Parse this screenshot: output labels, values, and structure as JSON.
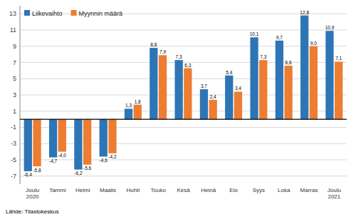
{
  "chart_data": {
    "type": "bar",
    "categories": [
      "Joulu\n2020",
      "Tammi",
      "Helmi",
      "Maalis",
      "Huhti",
      "Touko",
      "Kesä",
      "Heinä",
      "Elo",
      "Syys",
      "Loka",
      "Marras",
      "Joulu\n2021"
    ],
    "series": [
      {
        "name": "Liikevaihto",
        "color": "#2E75B6",
        "values": [
          -6.4,
          -4.7,
          -6.2,
          -4.6,
          1.3,
          8.8,
          7.3,
          3.7,
          5.4,
          10.1,
          9.7,
          12.8,
          10.9
        ],
        "value_labels": [
          "-6,4",
          "-4,7",
          "-6,2",
          "-4,6",
          "1,3",
          "8,8",
          "7,3",
          "3,7",
          "5,4",
          "10,1",
          "9,7",
          "12,8",
          "10,9"
        ]
      },
      {
        "name": "Myynnin määrä",
        "color": "#ED7D31",
        "values": [
          -5.8,
          -4.0,
          -5.6,
          -4.2,
          1.8,
          7.9,
          6.3,
          2.4,
          3.4,
          7.3,
          6.6,
          9.0,
          7.1
        ],
        "value_labels": [
          "-5,8",
          "-4,0",
          "-5,6",
          "-4,2",
          "1,8",
          "7,9",
          "6,3",
          "2,4",
          "3,4",
          "7,3",
          "6,6",
          "9,0",
          "7,1"
        ]
      }
    ],
    "ylim": [
      -8,
      14
    ],
    "yticks": [
      -7,
      -5,
      -3,
      -1,
      1,
      3,
      5,
      7,
      9,
      11,
      13
    ],
    "grid": true,
    "legend": "upper-left",
    "data_labels": true,
    "annotations": [
      "Lähde: Tilastokeskus"
    ]
  }
}
